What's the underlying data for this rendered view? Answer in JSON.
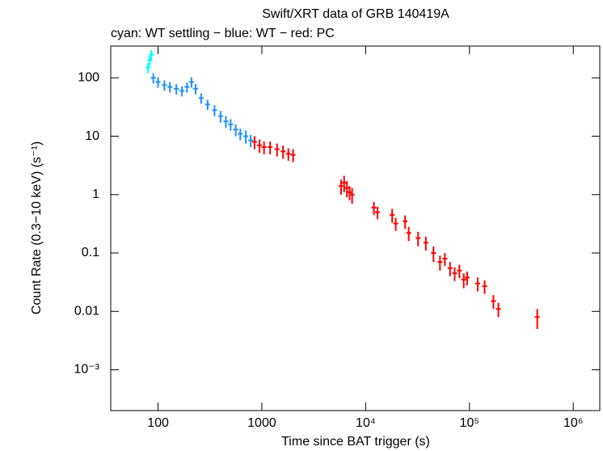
{
  "chart_data": {
    "type": "scatter",
    "title": "Swift/XRT data of GRB 140419A",
    "subtitle": "cyan: WT settling − blue: WT − red: PC",
    "x_label": "Time since BAT trigger (s)",
    "y_label": "Count Rate (0.3−10 keV) (s⁻¹)",
    "xscale": "log",
    "yscale": "log",
    "xlim": [
      35,
      1800000
    ],
    "ylim": [
      0.0002,
      350
    ],
    "xticks": [
      100,
      1000,
      {
        "value": 10000,
        "label": "10⁴"
      },
      {
        "value": 100000,
        "label": "10⁵"
      },
      {
        "value": 1000000,
        "label": "10⁶"
      }
    ],
    "yticks": [
      100,
      10,
      1,
      0.1,
      0.01,
      {
        "value": 0.001,
        "label": "10⁻³"
      }
    ],
    "series": [
      {
        "name": "WT settling",
        "color": "#00ffff",
        "x": [
          80,
          83,
          86
        ],
        "values": [
          150,
          200,
          250
        ],
        "errors": [
          30,
          40,
          50
        ]
      },
      {
        "name": "WT",
        "color": "#1e90ff",
        "x": [
          90,
          100,
          115,
          130,
          150,
          170,
          190,
          210,
          230,
          260,
          300,
          350,
          400,
          450,
          500,
          560,
          620,
          700,
          780
        ],
        "values": [
          100,
          85,
          75,
          70,
          65,
          60,
          70,
          85,
          65,
          45,
          35,
          28,
          22,
          18,
          16,
          13,
          11,
          10,
          8.5
        ],
        "errors": [
          20,
          17,
          15,
          14,
          13,
          12,
          14,
          17,
          13,
          9,
          7,
          6,
          5,
          4,
          3.5,
          3,
          2.5,
          2.5,
          2
        ]
      },
      {
        "name": "PC",
        "color": "#ff0000",
        "x": [
          850,
          950,
          1050,
          1200,
          1400,
          1600,
          1800,
          2000,
          5800,
          6200,
          6600,
          7000,
          7400,
          12000,
          13000,
          18000,
          19500,
          24000,
          26000,
          32000,
          38000,
          45000,
          52000,
          58000,
          65000,
          72000,
          80000,
          88000,
          95000,
          120000,
          140000,
          170000,
          190000,
          450000
        ],
        "values": [
          8,
          7,
          6.5,
          6.5,
          6,
          5.5,
          5,
          4.8,
          1.4,
          1.6,
          1.3,
          1.1,
          1.0,
          0.6,
          0.5,
          0.45,
          0.32,
          0.35,
          0.22,
          0.18,
          0.15,
          0.1,
          0.07,
          0.08,
          0.055,
          0.045,
          0.05,
          0.035,
          0.038,
          0.03,
          0.027,
          0.015,
          0.011,
          0.008
        ],
        "errors": [
          2,
          1.8,
          1.6,
          1.6,
          1.5,
          1.4,
          1.2,
          1.2,
          0.4,
          0.5,
          0.4,
          0.3,
          0.3,
          0.15,
          0.12,
          0.12,
          0.08,
          0.09,
          0.06,
          0.05,
          0.04,
          0.03,
          0.02,
          0.02,
          0.015,
          0.012,
          0.013,
          0.01,
          0.01,
          0.008,
          0.007,
          0.004,
          0.003,
          0.003
        ]
      }
    ]
  }
}
